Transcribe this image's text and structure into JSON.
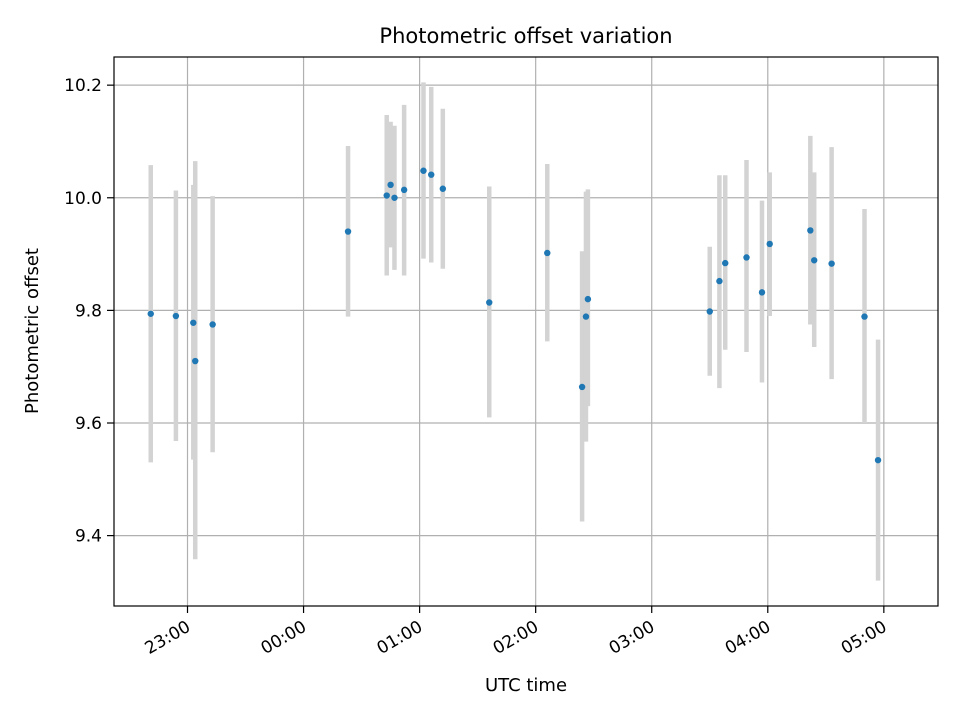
{
  "chart_data": {
    "type": "scatter",
    "title": "Photometric offset variation",
    "xlabel": "UTC time",
    "ylabel": "Photometric offset",
    "x_axis": "time",
    "xlim": [
      "22:22",
      "05:28"
    ],
    "ylim": [
      9.275,
      10.25
    ],
    "grid": true,
    "x_ticks": [
      "23:00",
      "00:00",
      "01:00",
      "02:00",
      "03:00",
      "04:00",
      "05:00"
    ],
    "y_ticks": [
      9.4,
      9.6,
      9.8,
      10.0,
      10.2
    ],
    "y_tick_labels": [
      "9.4",
      "9.6",
      "9.8",
      "10.0",
      "10.2"
    ],
    "point_color": "#1f77b4",
    "errorbar_color": "#d3d3d3",
    "series": [
      {
        "points": [
          {
            "x": "22:41",
            "y": 9.794,
            "low": 9.53,
            "high": 10.058
          },
          {
            "x": "22:54",
            "y": 9.79,
            "low": 9.568,
            "high": 10.013
          },
          {
            "x": "23:03",
            "y": 9.778,
            "low": 9.535,
            "high": 10.023
          },
          {
            "x": "23:04",
            "y": 9.71,
            "low": 9.358,
            "high": 10.065
          },
          {
            "x": "23:13",
            "y": 9.775,
            "low": 9.548,
            "high": 10.003
          },
          {
            "x": "00:23",
            "y": 9.94,
            "low": 9.789,
            "high": 10.092
          },
          {
            "x": "00:43",
            "y": 10.004,
            "low": 9.862,
            "high": 10.147
          },
          {
            "x": "00:45",
            "y": 10.023,
            "low": 9.912,
            "high": 10.135
          },
          {
            "x": "00:47",
            "y": 10.0,
            "low": 9.872,
            "high": 10.128
          },
          {
            "x": "00:52",
            "y": 10.014,
            "low": 9.862,
            "high": 10.165
          },
          {
            "x": "01:02",
            "y": 10.048,
            "low": 9.892,
            "high": 10.205
          },
          {
            "x": "01:06",
            "y": 10.041,
            "low": 9.885,
            "high": 10.197
          },
          {
            "x": "01:12",
            "y": 10.016,
            "low": 9.874,
            "high": 10.158
          },
          {
            "x": "01:36",
            "y": 9.814,
            "low": 9.61,
            "high": 10.02
          },
          {
            "x": "02:06",
            "y": 9.902,
            "low": 9.745,
            "high": 10.06
          },
          {
            "x": "02:24",
            "y": 9.664,
            "low": 9.425,
            "high": 9.905
          },
          {
            "x": "02:26",
            "y": 9.789,
            "low": 9.567,
            "high": 10.011
          },
          {
            "x": "02:27",
            "y": 9.82,
            "low": 9.63,
            "high": 10.015
          },
          {
            "x": "03:30",
            "y": 9.798,
            "low": 9.684,
            "high": 9.913
          },
          {
            "x": "03:35",
            "y": 9.852,
            "low": 9.662,
            "high": 10.04
          },
          {
            "x": "03:38",
            "y": 9.884,
            "low": 9.73,
            "high": 10.04
          },
          {
            "x": "03:49",
            "y": 9.894,
            "low": 9.726,
            "high": 10.067
          },
          {
            "x": "03:57",
            "y": 9.832,
            "low": 9.672,
            "high": 9.995
          },
          {
            "x": "04:01",
            "y": 9.918,
            "low": 9.79,
            "high": 10.045
          },
          {
            "x": "04:22",
            "y": 9.942,
            "low": 9.775,
            "high": 10.11
          },
          {
            "x": "04:24",
            "y": 9.889,
            "low": 9.735,
            "high": 10.045
          },
          {
            "x": "04:33",
            "y": 9.883,
            "low": 9.678,
            "high": 10.09
          },
          {
            "x": "04:50",
            "y": 9.789,
            "low": 9.6,
            "high": 9.98
          },
          {
            "x": "04:57",
            "y": 9.534,
            "low": 9.32,
            "high": 9.748
          }
        ]
      }
    ]
  }
}
